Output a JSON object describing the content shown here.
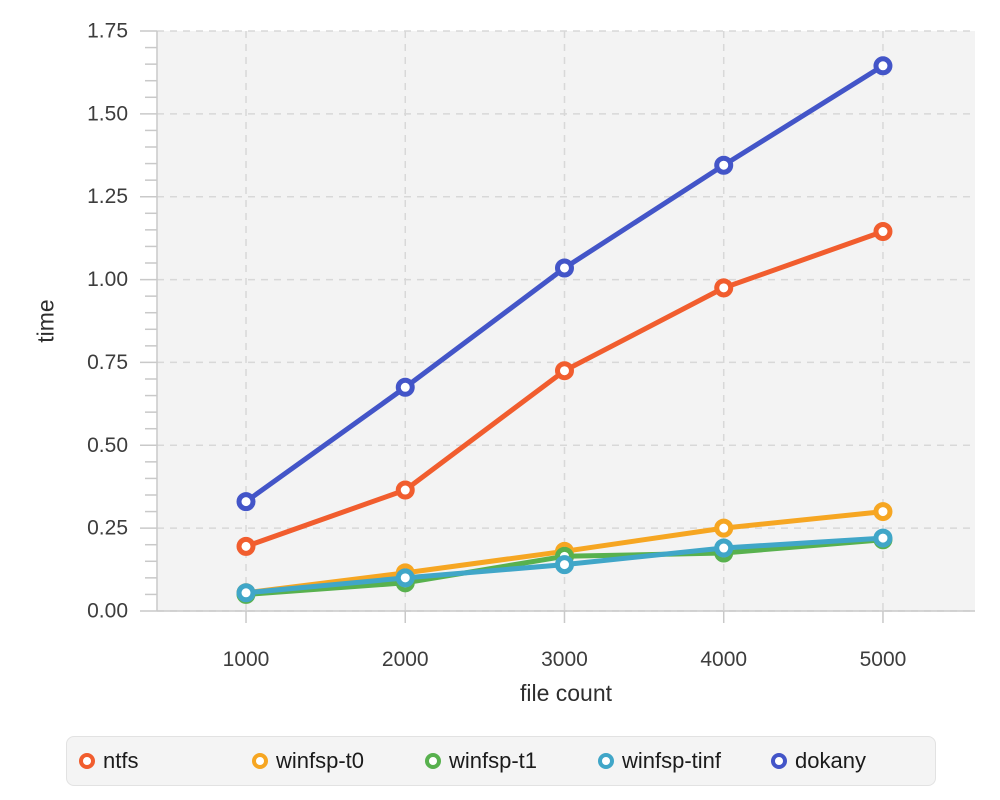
{
  "chart_data": {
    "type": "line",
    "title": "",
    "xlabel": "file count",
    "ylabel": "time",
    "x": [
      1000,
      2000,
      3000,
      4000,
      5000
    ],
    "x_tick_labels": [
      "1000",
      "2000",
      "3000",
      "4000",
      "5000"
    ],
    "y_ticks": [
      0,
      0.25,
      0.5,
      0.75,
      1.0,
      1.25,
      1.5,
      1.75
    ],
    "y_tick_labels": [
      "0.00",
      "0.25",
      "0.50",
      "0.75",
      "1.00",
      "1.25",
      "1.50",
      "1.75"
    ],
    "ylim": [
      0,
      1.75
    ],
    "y_minor_step": 0.05,
    "grid": true,
    "legend_position": "bottom",
    "marker": "open-circle",
    "series": [
      {
        "name": "ntfs",
        "color": "#f15d2e",
        "values": [
          0.195,
          0.365,
          0.725,
          0.975,
          1.145
        ]
      },
      {
        "name": "winfsp-t0",
        "color": "#f6a622",
        "values": [
          0.055,
          0.115,
          0.18,
          0.25,
          0.3
        ]
      },
      {
        "name": "winfsp-t1",
        "color": "#58b14e",
        "values": [
          0.05,
          0.085,
          0.165,
          0.175,
          0.215
        ]
      },
      {
        "name": "winfsp-tinf",
        "color": "#40a6c8",
        "values": [
          0.055,
          0.1,
          0.14,
          0.19,
          0.22
        ]
      },
      {
        "name": "dokany",
        "color": "#4355c8",
        "values": [
          0.33,
          0.675,
          1.035,
          1.345,
          1.645
        ]
      }
    ],
    "colors": {
      "plot_background": "#f3f3f3",
      "gridline": "#d8d8d8",
      "axis_line": "#c9c9c9",
      "tick_mark": "#c9c9c9",
      "tick_label": "#3d3d3d",
      "axis_title": "#2e2e2e",
      "legend_background": "#f4f4f4",
      "legend_border": "#e2e2e2",
      "legend_text": "#1b1b1b"
    }
  }
}
